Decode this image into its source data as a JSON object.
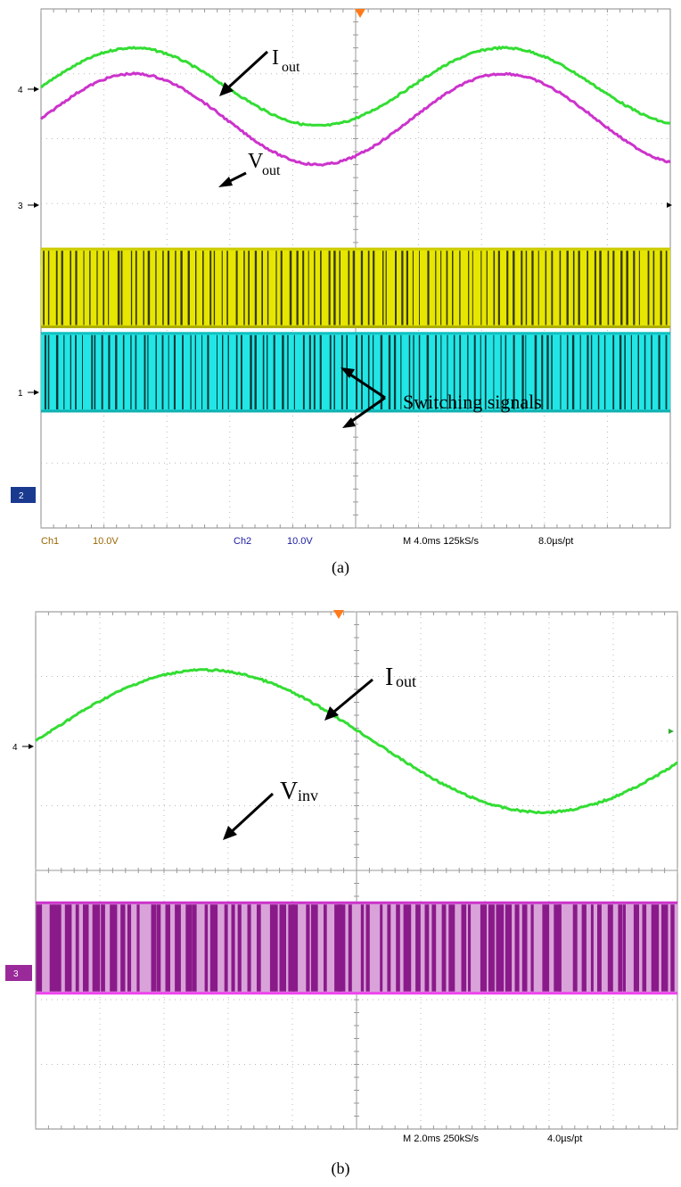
{
  "panel_a": {
    "caption": "(a)",
    "channel_markers": [
      "4",
      "3",
      "1",
      "2"
    ],
    "status": {
      "ch1_label": "Ch1",
      "ch1_scale": "10.0V",
      "ch2_label": "Ch2",
      "ch2_scale": "10.0V",
      "timebase": "M 4.0ms 125kS/s",
      "resolution": "8.0µs/pt"
    },
    "annotations": {
      "iout_main": "I",
      "iout_sub": "out",
      "vout_main": "V",
      "vout_sub": "out",
      "switching": "Switching signals"
    }
  },
  "panel_b": {
    "caption": "(b)",
    "channel_markers": [
      "4",
      "3"
    ],
    "status": {
      "timebase": "M 2.0ms 250kS/s",
      "resolution": "4.0µs/pt"
    },
    "annotations": {
      "iout_main": "I",
      "iout_sub": "out",
      "vinv_main": "V",
      "vinv_sub": "inv"
    }
  },
  "colors": {
    "green_trace": "#33dd33",
    "magenta_trace": "#cc33cc",
    "yellow_trace": "#e6e600",
    "cyan_trace": "#22e6e6",
    "pink_fill": "#d9a3d9",
    "dark_magenta": "#8a1a8a",
    "grid": "#b8b8b8",
    "status_brown": "#996600",
    "status_blue": "#1a1aa0",
    "trigger_orange": "#ff7a1a"
  },
  "chart_data": [
    {
      "type": "line",
      "title": "",
      "xlabel": "",
      "ylabel": "",
      "grid": true,
      "x_divisions": 10,
      "y_divisions": 8,
      "series": [
        {
          "name": "Iout",
          "waveform": "sine",
          "cycles_shown": 1.7,
          "amplitude_div": 0.6,
          "offset_div": 1.2
        },
        {
          "name": "Vout",
          "waveform": "sine",
          "cycles_shown": 1.7,
          "amplitude_div": 0.7,
          "offset_div": 1.7
        },
        {
          "name": "Switching signals (Ch1)",
          "waveform": "pwm",
          "amplitude_div": 1.2,
          "offset_div": 4.3
        },
        {
          "name": "Switching signals (Ch2)",
          "waveform": "pwm",
          "amplitude_div": 1.2,
          "offset_div": 5.6
        }
      ]
    },
    {
      "type": "line",
      "title": "",
      "xlabel": "",
      "ylabel": "",
      "grid": true,
      "x_divisions": 10,
      "y_divisions": 8,
      "series": [
        {
          "name": "Iout",
          "waveform": "sine",
          "cycles_shown": 0.95,
          "amplitude_div": 1.1,
          "offset_div": 2.0
        },
        {
          "name": "Vinv",
          "waveform": "pwm",
          "amplitude_div": 1.4,
          "offset_div": 5.2
        }
      ]
    }
  ]
}
